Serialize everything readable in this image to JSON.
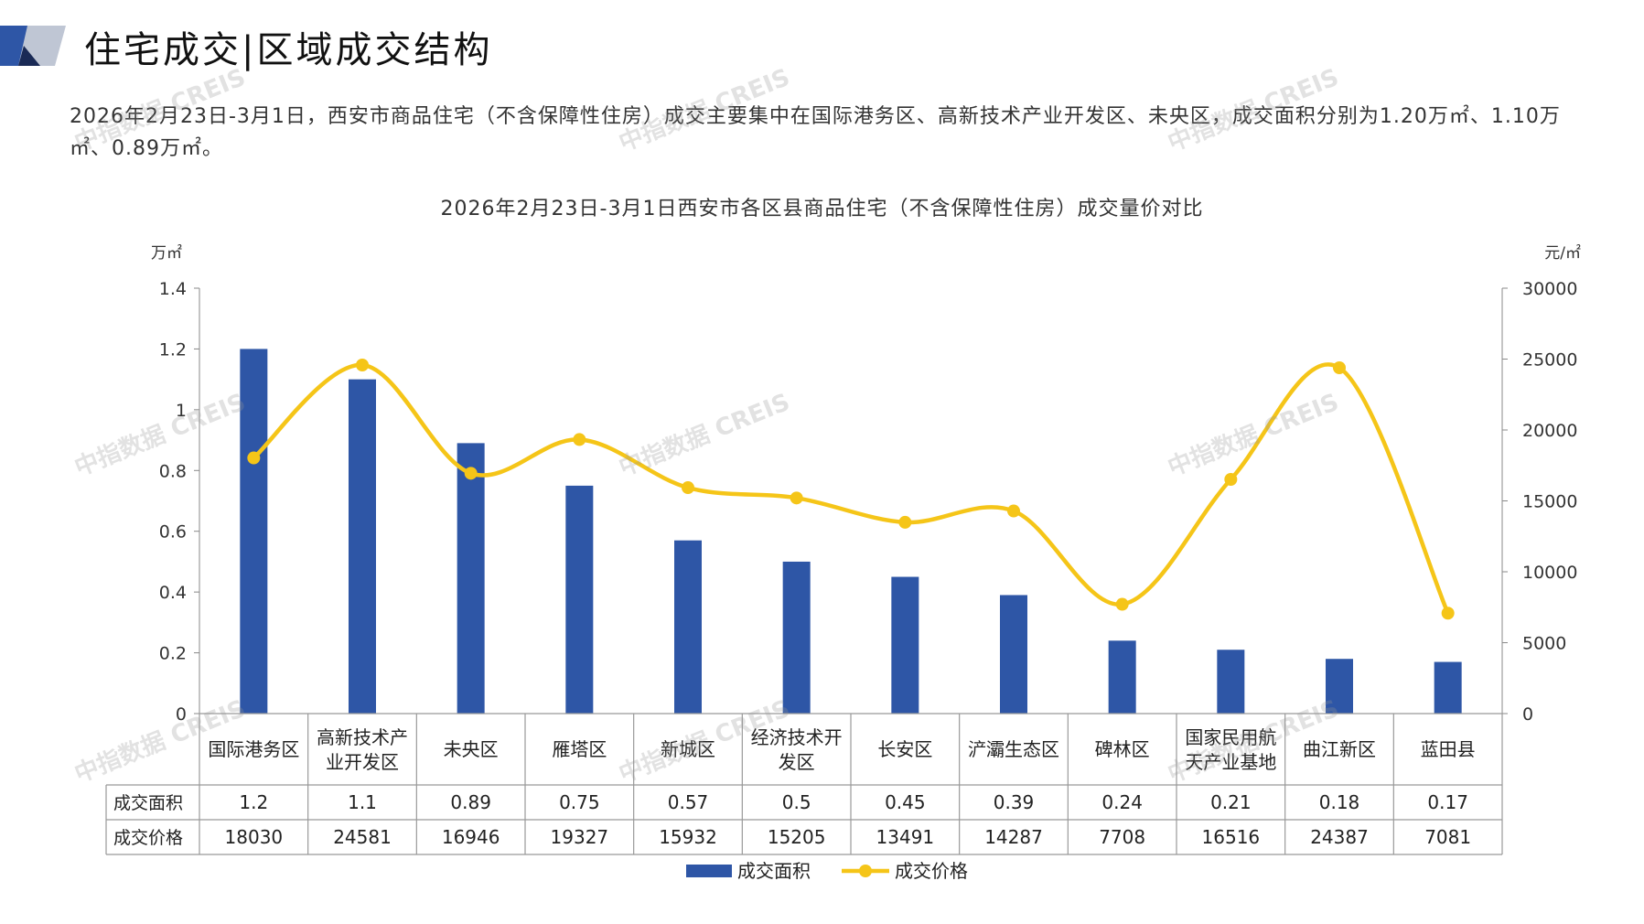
{
  "header": {
    "title": "住宅成交|区域成交结构"
  },
  "summary": "2026年2月23日-3月1日，西安市商品住宅（不含保障性住房）成交主要集中在国际港务区、高新技术产业开发区、未央区，成交面积分别为1.20万㎡、1.10万㎡、0.89万㎡。",
  "watermark": "中指数据 CREIS",
  "colors": {
    "bar": "#2E56A6",
    "line": "#F5C518",
    "grid": "#999999"
  },
  "chart_data": {
    "type": "bar",
    "title": "2026年2月23日-3月1日西安市各区县商品住宅（不含保障性住房）成交量价对比",
    "y_left_label": "万㎡",
    "y_right_label": "元/㎡",
    "y_left_ticks": [
      "1.4",
      "1.2",
      "1",
      "0.8",
      "0.6",
      "0.4",
      "0.2",
      "0"
    ],
    "y_right_ticks": [
      "30000",
      "25000",
      "20000",
      "15000",
      "10000",
      "5000",
      "0"
    ],
    "ylim_left": [
      0,
      1.4
    ],
    "ylim_right": [
      0,
      30000
    ],
    "categories": [
      "国际港务区",
      "高新技术产业开发区",
      "未央区",
      "雁塔区",
      "新城区",
      "经济技术开发区",
      "长安区",
      "浐灞生态区",
      "碑林区",
      "国家民用航天产业基地",
      "曲江新区",
      "蓝田县"
    ],
    "category_lines": [
      [
        "国际港务区"
      ],
      [
        "高新技术产",
        "业开发区"
      ],
      [
        "未央区"
      ],
      [
        "雁塔区"
      ],
      [
        "新城区"
      ],
      [
        "经济技术开",
        "发区"
      ],
      [
        "长安区"
      ],
      [
        "浐灞生态区"
      ],
      [
        "碑林区"
      ],
      [
        "国家民用航",
        "天产业基地"
      ],
      [
        "曲江新区"
      ],
      [
        "蓝田县"
      ]
    ],
    "series": [
      {
        "name": "成交面积",
        "type": "bar",
        "axis": "left",
        "values": [
          1.2,
          1.1,
          0.89,
          0.75,
          0.57,
          0.5,
          0.45,
          0.39,
          0.24,
          0.21,
          0.18,
          0.17
        ],
        "labels": [
          "1.2",
          "1.1",
          "0.89",
          "0.75",
          "0.57",
          "0.5",
          "0.45",
          "0.39",
          "0.24",
          "0.21",
          "0.18",
          "0.17"
        ]
      },
      {
        "name": "成交价格",
        "type": "line",
        "axis": "right",
        "values": [
          18030,
          24581,
          16946,
          19327,
          15932,
          15205,
          13491,
          14287,
          7708,
          16516,
          24387,
          7081
        ],
        "labels": [
          "18030",
          "24581",
          "16946",
          "19327",
          "15932",
          "15205",
          "13491",
          "14287",
          "7708",
          "16516",
          "24387",
          "7081"
        ]
      }
    ],
    "legend": [
      "成交面积",
      "成交价格"
    ],
    "legend_position": "bottom"
  }
}
